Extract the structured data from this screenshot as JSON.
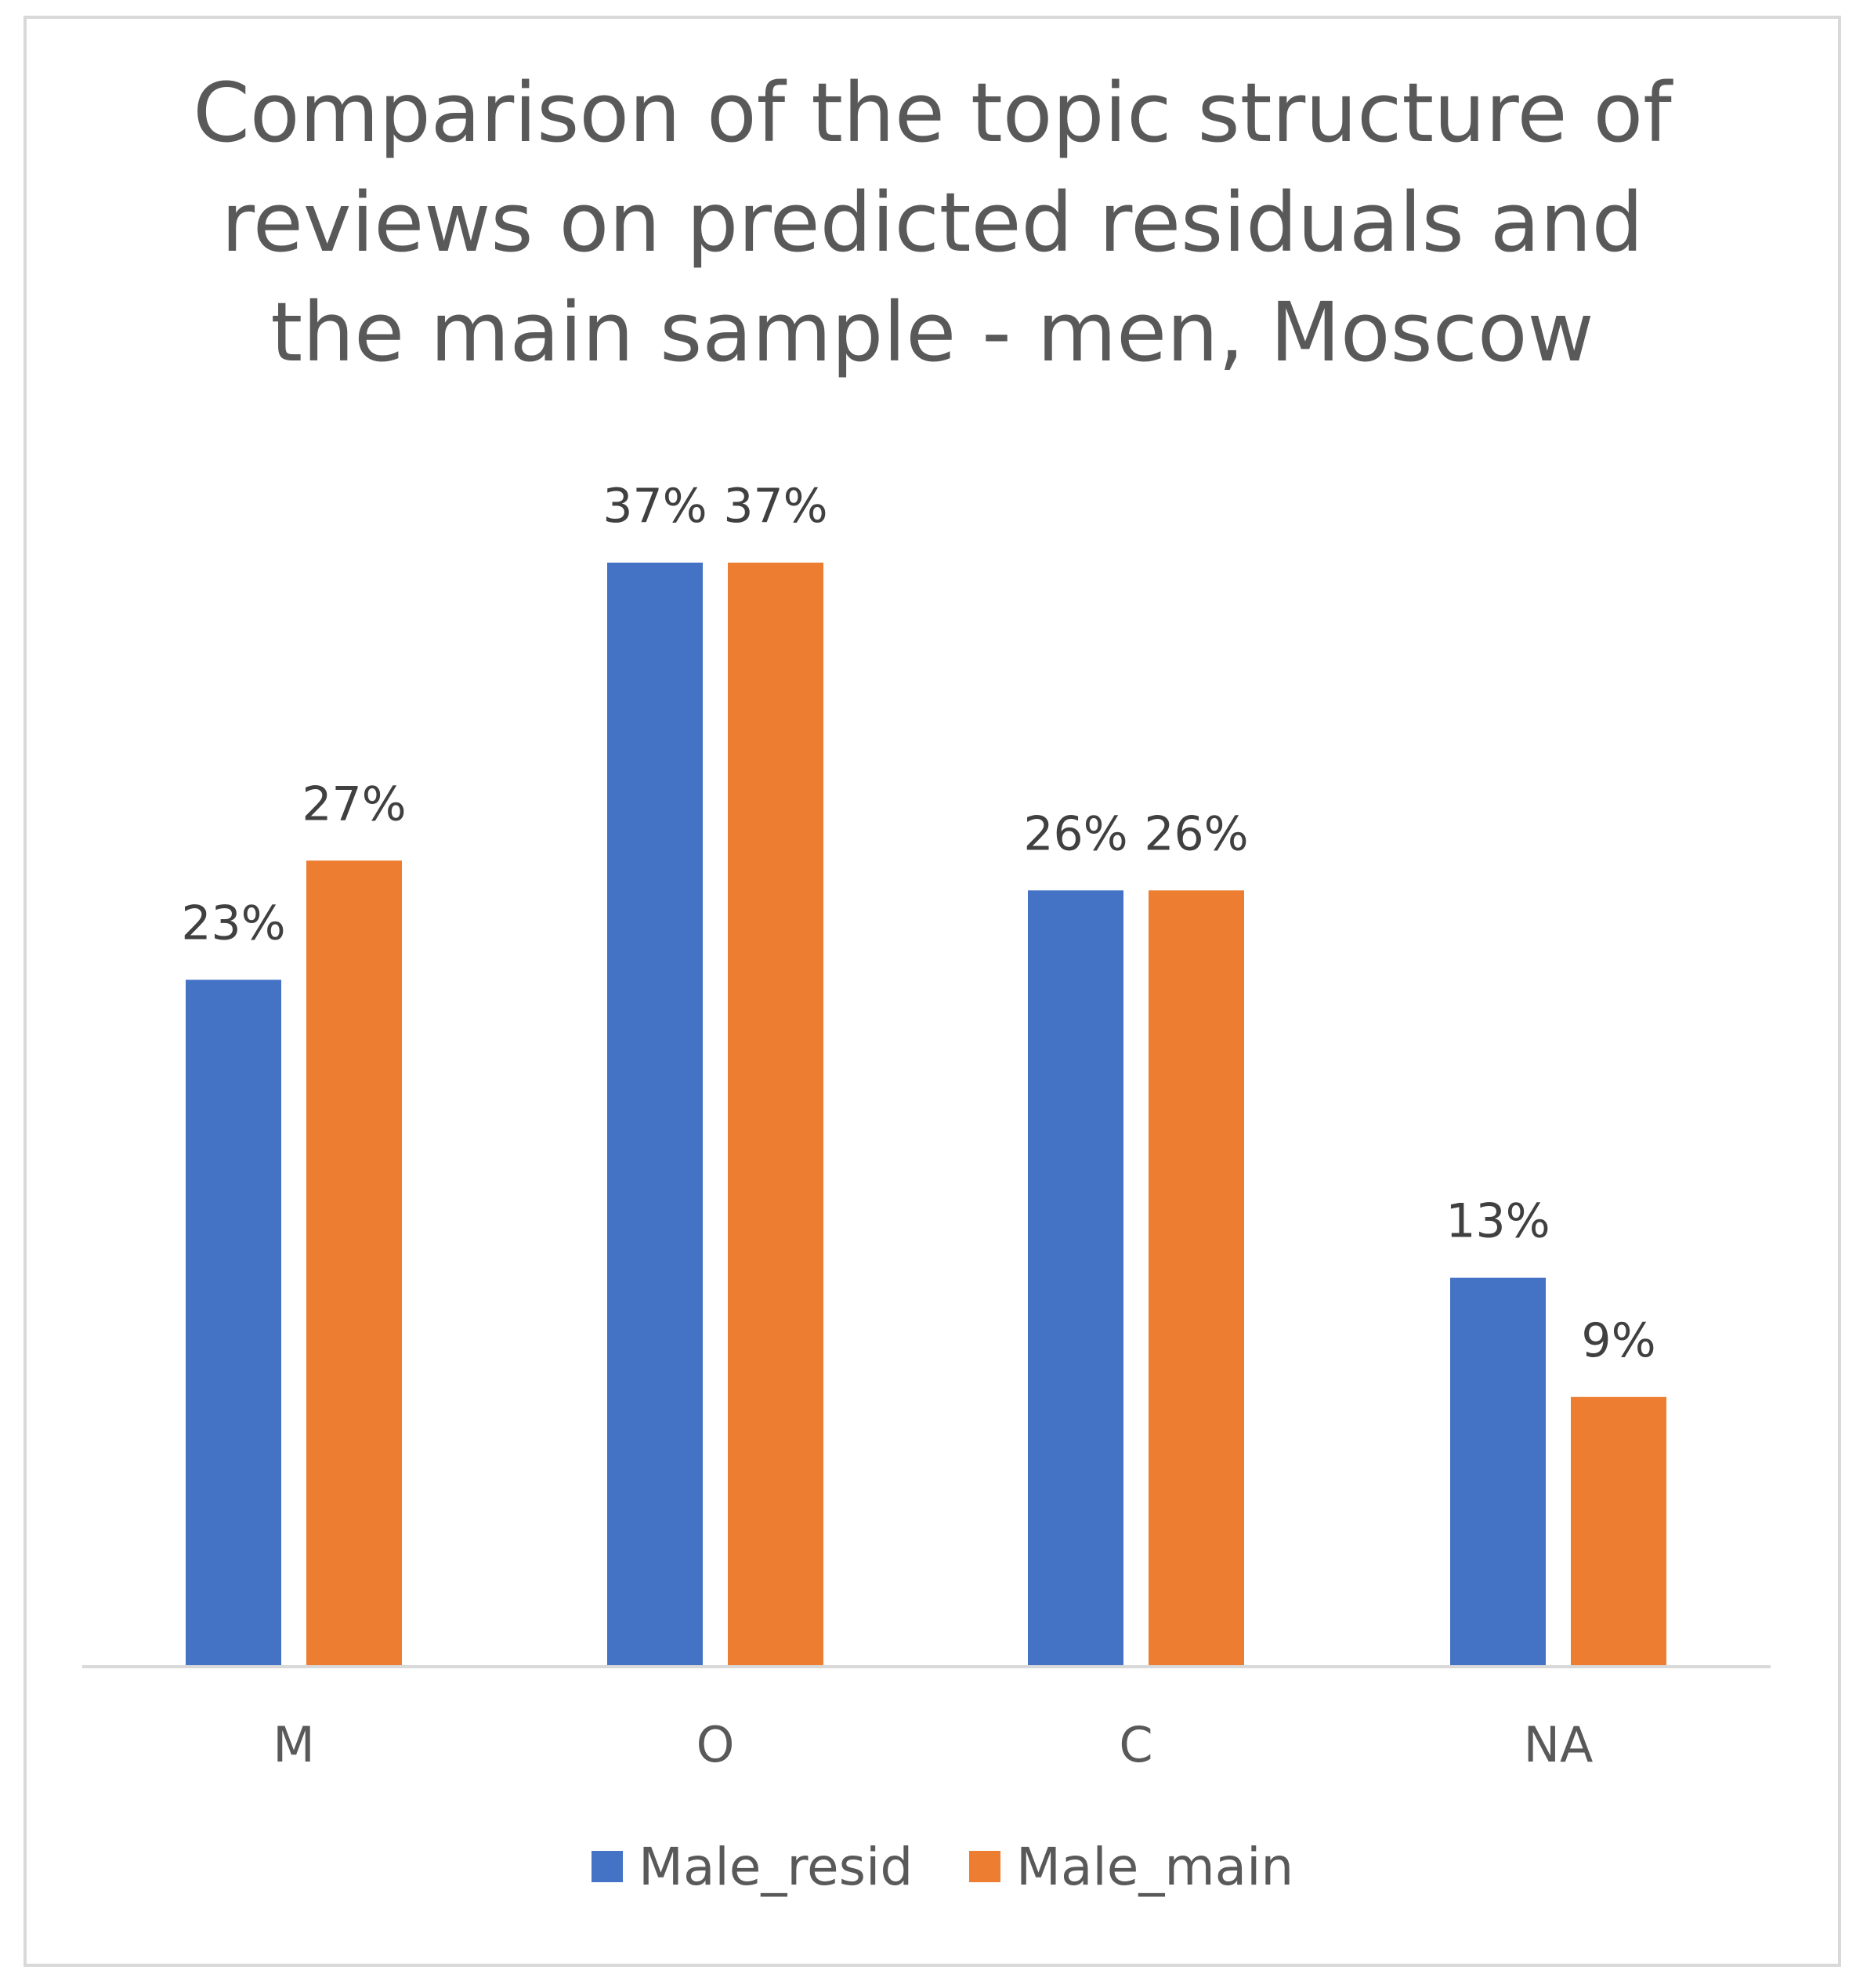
{
  "chart_data": {
    "type": "bar",
    "title": "Comparison of the topic structure of reviews on predicted residuals and the main sample - men, Moscow",
    "title_lines": [
      "Comparison of the topic structure of",
      "reviews on predicted residuals and",
      "the main sample - men, Moscow"
    ],
    "categories": [
      "M",
      "O",
      "C",
      "NA"
    ],
    "series": [
      {
        "name": "Male_resid",
        "color": "#4472C4",
        "values": [
          23,
          37,
          26,
          13
        ],
        "labels": [
          "23%",
          "37%",
          "26%",
          "13%"
        ]
      },
      {
        "name": "Male_main",
        "color": "#ED7D31",
        "values": [
          27,
          37,
          26,
          9
        ],
        "labels": [
          "27%",
          "37%",
          "26%",
          "9%"
        ]
      }
    ],
    "unit": "%",
    "ylim": [
      0,
      37
    ],
    "xlabel": "",
    "ylabel": "",
    "grid": false,
    "legend_position": "bottom",
    "axis_color": "#d9d9d9"
  }
}
